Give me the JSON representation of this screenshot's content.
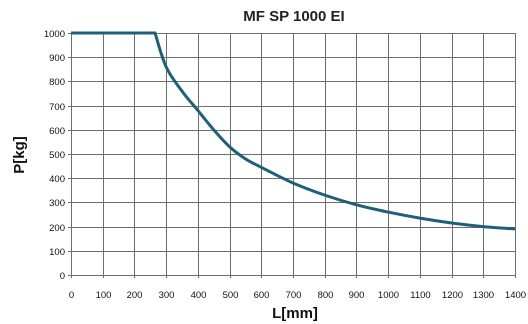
{
  "colors": {
    "line": "#1f5f7c",
    "grid": "#6e6e6e",
    "text": "#111111"
  },
  "chart_data": {
    "type": "line",
    "title": "MF SP 1000 EI",
    "xlabel": "L[mm]",
    "ylabel": "P[kg]",
    "xlim": [
      0,
      1400
    ],
    "ylim": [
      0,
      1000
    ],
    "x_ticks": [
      "0",
      "100",
      "200",
      "300",
      "400",
      "500",
      "600",
      "700",
      "800",
      "900",
      "1000",
      "1100",
      "1200",
      "1300",
      "1400"
    ],
    "y_ticks": [
      "0",
      "100",
      "200",
      "300",
      "400",
      "500",
      "600",
      "700",
      "800",
      "900",
      "1000"
    ],
    "grid": true,
    "series": [
      {
        "x": [
          0,
          100,
          200,
          265,
          300,
          350,
          400,
          450,
          500,
          550,
          600,
          700,
          800,
          900,
          1000,
          1100,
          1200,
          1300,
          1400
        ],
        "y": [
          1000,
          1000,
          1000,
          1000,
          860,
          760,
          680,
          600,
          530,
          480,
          445,
          380,
          330,
          290,
          260,
          235,
          215,
          200,
          190
        ]
      }
    ]
  }
}
